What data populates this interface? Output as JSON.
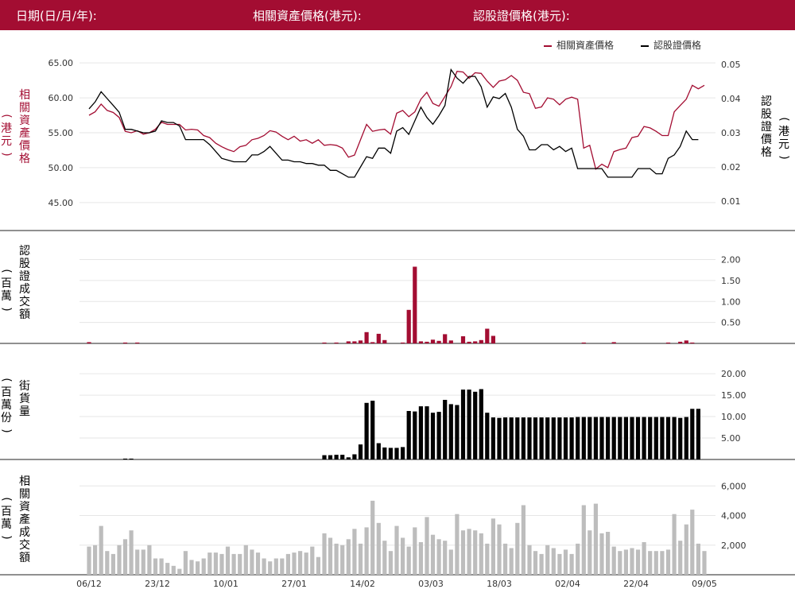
{
  "header": {
    "date_label": "日期(日/月/年):",
    "underlying_label": "相關資產價格(港元):",
    "warrant_label": "認股證價格(港元):"
  },
  "legend": {
    "underlying": "相關資產價格",
    "warrant": "認股證價格"
  },
  "colors": {
    "brand": "#a30d32",
    "warrant": "#000000",
    "underlying_volume": "#bdbdbd"
  },
  "axis_labels": {
    "left_price": [
      "相",
      "關",
      "資",
      "產",
      "價",
      "格"
    ],
    "left_price_unit": [
      "港",
      "元"
    ],
    "right_price": [
      "認",
      "股",
      "證",
      "價",
      "格"
    ],
    "right_price_unit": [
      "港",
      "元"
    ],
    "warrant_turnover": [
      "認",
      "股",
      "證",
      "成",
      "交",
      "額"
    ],
    "warrant_turnover_unit": [
      "百",
      "萬"
    ],
    "outstanding": [
      "街",
      "貨",
      "量"
    ],
    "outstanding_unit": [
      "百",
      "萬",
      "份"
    ],
    "underlying_turnover": [
      "相",
      "關",
      "資",
      "產",
      "成",
      "交",
      "額"
    ],
    "underlying_turnover_unit": [
      "百",
      "萬"
    ]
  },
  "chart_data": [
    {
      "type": "line",
      "name": "price",
      "x_tick_labels": [
        "06/12",
        "23/12",
        "10/01",
        "27/01",
        "14/02",
        "03/03",
        "18/03",
        "02/04",
        "22/04",
        "09/05"
      ],
      "left_axis": {
        "ticks": [
          "65.00",
          "60.00",
          "55.00",
          "50.00",
          "45.00"
        ],
        "ylim": [
          43.5,
          66.5
        ]
      },
      "right_axis": {
        "ticks": [
          "0.05",
          "0.04",
          "0.03",
          "0.02",
          "0.01"
        ],
        "ylim": [
          0.0065,
          0.0535
        ]
      },
      "series": [
        {
          "name": "相關資產價格",
          "axis": "left",
          "color": "#a30d32",
          "values": [
            57.5,
            58,
            59.1,
            58.2,
            57.9,
            57.2,
            55.2,
            55,
            55.3,
            54.8,
            55,
            55.5,
            56.5,
            56.2,
            56.2,
            56.2,
            55.4,
            55.5,
            55.4,
            54.6,
            54.3,
            53.5,
            53,
            52.6,
            52.3,
            53,
            53.2,
            54,
            54.2,
            54.6,
            55.3,
            55.1,
            54.5,
            54,
            54.5,
            53.8,
            54,
            53.5,
            54,
            53.2,
            53.3,
            53.2,
            52.8,
            51.5,
            51.8,
            54,
            56.2,
            55.2,
            55.4,
            55.5,
            54.8,
            57.8,
            58.2,
            57.3,
            58,
            59.8,
            60.8,
            59.2,
            58.8,
            60.2,
            61.6,
            63.8,
            63.7,
            62.8,
            63.6,
            63.5,
            62.4,
            61.5,
            62.4,
            62.6,
            63.2,
            62.5,
            60.8,
            60.6,
            58.5,
            58.7,
            60,
            59.8,
            59,
            59.8,
            60.1,
            59.8,
            52.8,
            53.2,
            49.8,
            50.5,
            50,
            52.3,
            52.6,
            52.8,
            54.3,
            54.5,
            55.9,
            55.7,
            55.2,
            54.6,
            54.6,
            58,
            58.9,
            59.8,
            61.8,
            61.3,
            61.8
          ]
        },
        {
          "name": "認股證價格",
          "axis": "right",
          "color": "#000000",
          "values": [
            0.037,
            0.039,
            0.042,
            0.04,
            0.038,
            0.036,
            0.031,
            0.031,
            0.0305,
            0.03,
            0.03,
            0.0305,
            0.0335,
            0.033,
            0.033,
            0.032,
            0.028,
            0.028,
            0.028,
            0.028,
            0.0265,
            0.0245,
            0.0225,
            0.022,
            0.0215,
            0.0215,
            0.0215,
            0.0235,
            0.0235,
            0.0245,
            0.026,
            0.024,
            0.022,
            0.022,
            0.0215,
            0.0215,
            0.021,
            0.021,
            0.0205,
            0.0205,
            0.019,
            0.019,
            0.018,
            0.017,
            0.017,
            0.02,
            0.023,
            0.0225,
            0.0255,
            0.0255,
            0.024,
            0.0305,
            0.0315,
            0.0295,
            0.0335,
            0.0375,
            0.0345,
            0.0325,
            0.035,
            0.038,
            0.0485,
            0.046,
            0.0445,
            0.0465,
            0.0465,
            0.0435,
            0.0375,
            0.0405,
            0.04,
            0.0415,
            0.0375,
            0.031,
            0.029,
            0.025,
            0.025,
            0.0265,
            0.0265,
            0.025,
            0.026,
            0.0245,
            0.0255,
            0.0195,
            0.0195,
            0.0195,
            0.0195,
            0.0195,
            0.017,
            0.017,
            0.017,
            0.017,
            0.017,
            0.0195,
            0.0195,
            0.0195,
            0.018,
            0.018,
            0.0225,
            0.0235,
            0.026,
            0.0305,
            0.028,
            0.028
          ]
        }
      ]
    },
    {
      "type": "bar",
      "name": "warrant_turnover",
      "axis_ticks": [
        "2.00",
        "1.50",
        "1.00",
        "0.50"
      ],
      "ylim": [
        0,
        2.2
      ],
      "color": "#a30d32",
      "values": [
        0.03,
        0,
        0,
        0,
        0,
        0,
        0.02,
        0,
        0.02,
        0,
        0,
        0,
        0,
        0,
        0,
        0,
        0,
        0,
        0,
        0,
        0,
        0,
        0,
        0,
        0,
        0,
        0,
        0,
        0,
        0,
        0,
        0,
        0,
        0,
        0,
        0,
        0,
        0,
        0,
        0.02,
        0,
        0.02,
        0,
        0.05,
        0.05,
        0.07,
        0.27,
        0.03,
        0.23,
        0.08,
        0,
        0,
        0.02,
        0.8,
        1.83,
        0.05,
        0.04,
        0.09,
        0.06,
        0.22,
        0.07,
        0,
        0.17,
        0.04,
        0.05,
        0.08,
        0.35,
        0.18,
        0,
        0,
        0,
        0,
        0,
        0,
        0,
        0,
        0,
        0,
        0,
        0,
        0,
        0,
        0.02,
        0,
        0,
        0,
        0,
        0.03,
        0,
        0,
        0,
        0,
        0,
        0,
        0,
        0,
        0.02,
        0,
        0.04,
        0.07,
        0.02,
        0
      ]
    },
    {
      "type": "bar",
      "name": "outstanding",
      "axis_ticks": [
        "20.00",
        "15.00",
        "10.00",
        "5.00"
      ],
      "ylim": [
        0,
        21.5
      ],
      "color": "#000000",
      "values": [
        0,
        0,
        0,
        0,
        0,
        0,
        0.2,
        0.2,
        0,
        0,
        0,
        0,
        0,
        0,
        0,
        0,
        0,
        0,
        0,
        0,
        0,
        0,
        0,
        0,
        0,
        0,
        0,
        0,
        0,
        0,
        0,
        0,
        0,
        0,
        0,
        0,
        0,
        0,
        0,
        1,
        1,
        1.1,
        1.1,
        0.5,
        1.2,
        3.5,
        13.2,
        13.7,
        3.8,
        2.8,
        2.7,
        2.7,
        2.9,
        11.3,
        11.2,
        12.4,
        12.4,
        10.9,
        11.1,
        13.9,
        12.9,
        12.7,
        16.3,
        16.3,
        15.8,
        16.4,
        10.9,
        9.8,
        9.7,
        9.8,
        9.8,
        9.8,
        9.8,
        9.8,
        9.8,
        9.8,
        9.8,
        9.8,
        9.8,
        9.8,
        9.8,
        9.9,
        9.9,
        9.9,
        9.9,
        9.9,
        9.9,
        9.9,
        9.9,
        9.9,
        9.9,
        9.9,
        9.9,
        9.9,
        9.9,
        9.9,
        9.9,
        9.9,
        9.7,
        9.9,
        11.8,
        11.8
      ]
    },
    {
      "type": "bar",
      "name": "underlying_turnover",
      "axis_ticks": [
        "6,000",
        "4,000",
        "2,000"
      ],
      "ylim": [
        0,
        6500
      ],
      "color": "#bdbdbd",
      "values": [
        1900,
        2000,
        3300,
        1600,
        1400,
        2000,
        2400,
        3000,
        1700,
        1700,
        2000,
        1100,
        1100,
        800,
        600,
        400,
        1600,
        1000,
        900,
        1100,
        1500,
        1500,
        1400,
        1900,
        1400,
        1400,
        2000,
        1700,
        1500,
        1100,
        900,
        1100,
        1100,
        1400,
        1500,
        1600,
        1500,
        1900,
        1200,
        2800,
        2500,
        2100,
        2000,
        2400,
        3100,
        2100,
        3200,
        5000,
        3500,
        2300,
        1600,
        3300,
        2500,
        1900,
        3200,
        2200,
        3900,
        2700,
        2400,
        2300,
        1700,
        4100,
        3000,
        3100,
        3000,
        2800,
        2100,
        3800,
        3400,
        2100,
        1800,
        3500,
        4700,
        2000,
        1600,
        1400,
        2000,
        1800,
        1400,
        1700,
        1400,
        2100,
        4700,
        3000,
        4800,
        2800,
        2900,
        1900,
        1600,
        1700,
        1800,
        1700,
        2200,
        1600,
        1600,
        1600,
        1700,
        4100,
        2300,
        3400,
        4400,
        2100,
        1600
      ]
    }
  ]
}
